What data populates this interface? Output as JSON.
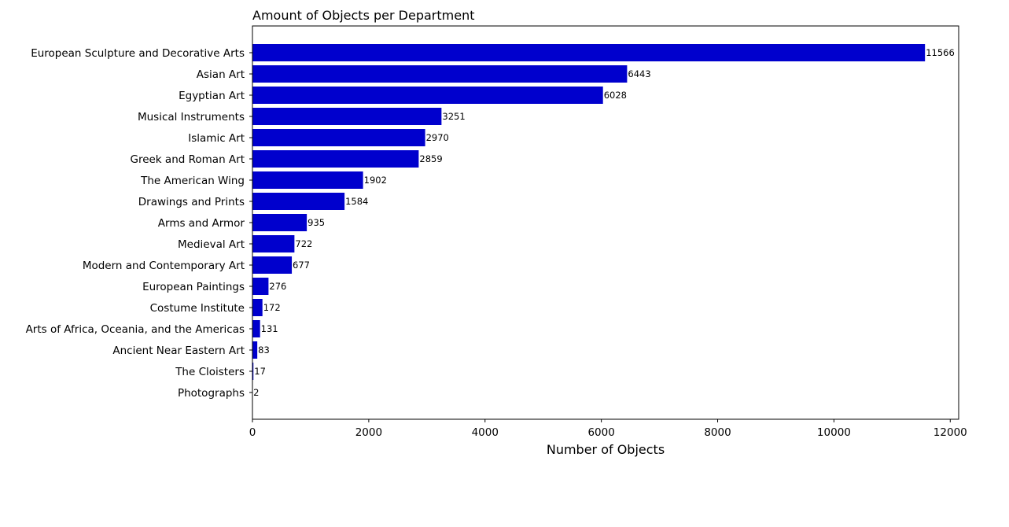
{
  "chart_data": {
    "type": "bar",
    "orientation": "horizontal",
    "title": "Amount of Objects per Department",
    "xlabel": "Number of Objects",
    "ylabel": "",
    "xlim": [
      0,
      12145
    ],
    "xticks": [
      0,
      2000,
      4000,
      6000,
      8000,
      10000,
      12000
    ],
    "grid": false,
    "bar_color": "#0000cd",
    "categories": [
      "European Sculpture and Decorative Arts",
      "Asian Art",
      "Egyptian Art",
      "Musical Instruments",
      "Islamic Art",
      "Greek and Roman Art",
      "The American Wing",
      "Drawings and Prints",
      "Arms and Armor",
      "Medieval Art",
      "Modern and Contemporary Art",
      "European Paintings",
      "Costume Institute",
      "Arts of Africa, Oceania, and the Americas",
      "Ancient Near Eastern Art",
      "The Cloisters",
      "Photographs"
    ],
    "values": [
      11566,
      6443,
      6028,
      3251,
      2970,
      2859,
      1902,
      1584,
      935,
      722,
      677,
      276,
      172,
      131,
      83,
      17,
      2
    ]
  }
}
